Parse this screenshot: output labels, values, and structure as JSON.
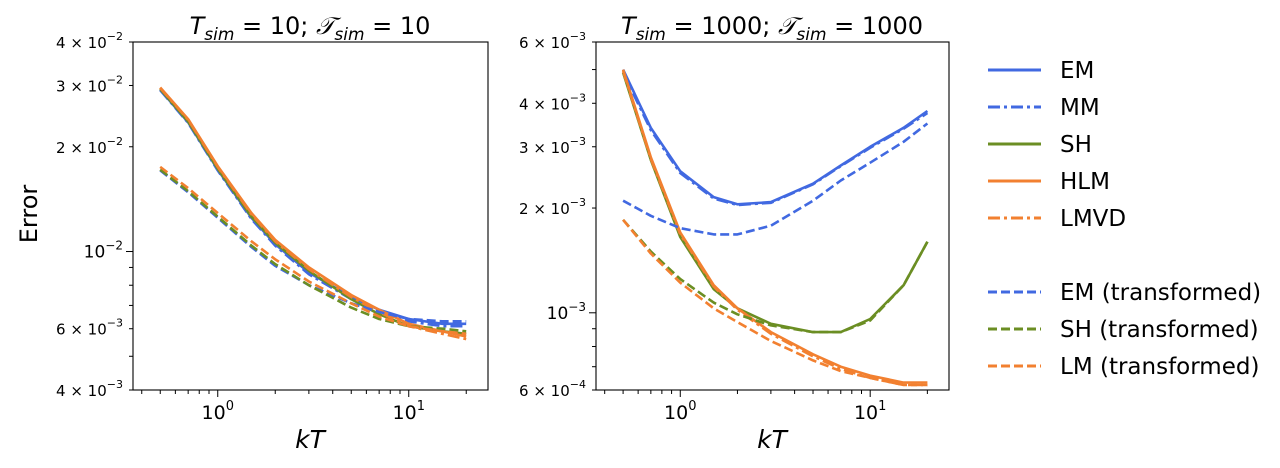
{
  "figure": {
    "ylabel": "Error",
    "legend": {
      "placement": "right",
      "entries": [
        {
          "label": "EM",
          "color": "#4169e1",
          "dash": "solid"
        },
        {
          "label": "MM",
          "color": "#4169e1",
          "dash": "dashdot"
        },
        {
          "label": "SH",
          "color": "#6b8e23",
          "dash": "solid"
        },
        {
          "label": "HLM",
          "color": "#f28030",
          "dash": "solid"
        },
        {
          "label": "LMVD",
          "color": "#f28030",
          "dash": "dashdot"
        },
        {
          "label": "EM (transformed)",
          "color": "#4169e1",
          "dash": "dashed"
        },
        {
          "label": "SH (transformed)",
          "color": "#6b8e23",
          "dash": "dashed"
        },
        {
          "label": "LM (transformed)",
          "color": "#f28030",
          "dash": "dashed"
        }
      ]
    }
  },
  "chart_data": [
    {
      "type": "line",
      "title_parts": {
        "T": "T",
        "T_sub": "sim",
        "eq1": " = 10; ",
        "cal": "𝒯",
        "cal_sub": "sim",
        "eq2": " = 10"
      },
      "xlabel": "kT",
      "xscale": "log",
      "yscale": "log",
      "xlim": [
        0.36,
        26
      ],
      "ylim": [
        0.004,
        0.04
      ],
      "xticks": [
        {
          "value": 1,
          "base": "10",
          "exp": "0"
        },
        {
          "value": 10,
          "base": "10",
          "exp": "1"
        }
      ],
      "yticks": [
        {
          "value": 0.04,
          "mant": "4 × 10",
          "exp": "−2"
        },
        {
          "value": 0.03,
          "mant": "3 × 10",
          "exp": "−2"
        },
        {
          "value": 0.02,
          "mant": "2 × 10",
          "exp": "−2"
        },
        {
          "value": 0.01,
          "mant": "10",
          "exp": "−2"
        },
        {
          "value": 0.006,
          "mant": "6 × 10",
          "exp": "−3"
        },
        {
          "value": 0.004,
          "mant": "4 × 10",
          "exp": "−3"
        }
      ],
      "series": [
        {
          "name": "EM",
          "color": "#4169e1",
          "dash": "solid",
          "x": [
            0.5,
            0.7,
            1,
            1.5,
            2,
            3,
            5,
            7,
            10,
            15,
            20
          ],
          "y": [
            0.0292,
            0.0235,
            0.0172,
            0.0125,
            0.0105,
            0.0087,
            0.0074,
            0.0068,
            0.0064,
            0.0062,
            0.0062
          ]
        },
        {
          "name": "MM",
          "color": "#4169e1",
          "dash": "dashdot",
          "x": [
            0.5,
            0.7,
            1,
            1.5,
            2,
            3,
            5,
            7,
            10,
            15,
            20
          ],
          "y": [
            0.0291,
            0.0234,
            0.0171,
            0.0124,
            0.0104,
            0.0086,
            0.0073,
            0.0067,
            0.0063,
            0.0061,
            0.0061
          ]
        },
        {
          "name": "SH",
          "color": "#6b8e23",
          "dash": "solid",
          "x": [
            0.5,
            0.7,
            1,
            1.5,
            2,
            3,
            5,
            7,
            10,
            15,
            20
          ],
          "y": [
            0.0293,
            0.0236,
            0.0173,
            0.0126,
            0.0106,
            0.0088,
            0.0073,
            0.0066,
            0.0061,
            0.0059,
            0.0058
          ]
        },
        {
          "name": "HLM",
          "color": "#f28030",
          "dash": "solid",
          "x": [
            0.5,
            0.7,
            1,
            1.5,
            2,
            3,
            5,
            7,
            10,
            15,
            20
          ],
          "y": [
            0.0296,
            0.024,
            0.0176,
            0.0129,
            0.0108,
            0.009,
            0.0075,
            0.0068,
            0.0062,
            0.0059,
            0.0057
          ]
        },
        {
          "name": "LMVD",
          "color": "#f28030",
          "dash": "dashdot",
          "x": [
            0.5,
            0.7,
            1,
            1.5,
            2,
            3,
            5,
            7,
            10,
            15,
            20
          ],
          "y": [
            0.0295,
            0.0239,
            0.0175,
            0.0128,
            0.0107,
            0.0089,
            0.0074,
            0.0067,
            0.0061,
            0.0058,
            0.0056
          ]
        },
        {
          "name": "EM (transformed)",
          "color": "#4169e1",
          "dash": "dashed",
          "x": [
            0.5,
            0.7,
            1,
            1.5,
            2,
            3,
            5,
            7,
            10,
            15,
            20
          ],
          "y": [
            0.0171,
            0.0148,
            0.0125,
            0.0103,
            0.0091,
            0.008,
            0.0071,
            0.0067,
            0.0064,
            0.0063,
            0.0063
          ]
        },
        {
          "name": "SH (transformed)",
          "color": "#6b8e23",
          "dash": "dashed",
          "x": [
            0.5,
            0.7,
            1,
            1.5,
            2,
            3,
            5,
            7,
            10,
            15,
            20
          ],
          "y": [
            0.0172,
            0.0149,
            0.0126,
            0.0104,
            0.0092,
            0.008,
            0.0069,
            0.0064,
            0.0061,
            0.006,
            0.0059
          ]
        },
        {
          "name": "LM (transformed)",
          "color": "#f28030",
          "dash": "dashed",
          "x": [
            0.5,
            0.7,
            1,
            1.5,
            2,
            3,
            5,
            7,
            10,
            15,
            20
          ],
          "y": [
            0.0175,
            0.0152,
            0.0129,
            0.0107,
            0.0095,
            0.0082,
            0.0071,
            0.0065,
            0.0061,
            0.0059,
            0.0058
          ]
        }
      ]
    },
    {
      "type": "line",
      "title_parts": {
        "T": "T",
        "T_sub": "sim",
        "eq1": " = 1000; ",
        "cal": "𝒯",
        "cal_sub": "sim",
        "eq2": " = 1000"
      },
      "xlabel": "kT",
      "xscale": "log",
      "yscale": "log",
      "xlim": [
        0.36,
        26
      ],
      "ylim": [
        0.0006,
        0.006
      ],
      "xticks": [
        {
          "value": 1,
          "base": "10",
          "exp": "0"
        },
        {
          "value": 10,
          "base": "10",
          "exp": "1"
        }
      ],
      "yticks": [
        {
          "value": 0.006,
          "mant": "6 × 10",
          "exp": "−3"
        },
        {
          "value": 0.004,
          "mant": "4 × 10",
          "exp": "−3"
        },
        {
          "value": 0.003,
          "mant": "3 × 10",
          "exp": "−3"
        },
        {
          "value": 0.002,
          "mant": "2 × 10",
          "exp": "−3"
        },
        {
          "value": 0.001,
          "mant": "10",
          "exp": "−3"
        },
        {
          "value": 0.0006,
          "mant": "6 × 10",
          "exp": "−4"
        }
      ],
      "series": [
        {
          "name": "EM",
          "color": "#4169e1",
          "dash": "solid",
          "x": [
            0.5,
            0.7,
            1,
            1.5,
            2,
            3,
            5,
            7,
            10,
            15,
            20
          ],
          "y": [
            0.005,
            0.0034,
            0.00255,
            0.00215,
            0.00205,
            0.00208,
            0.00235,
            0.00265,
            0.003,
            0.0034,
            0.0038
          ]
        },
        {
          "name": "MM",
          "color": "#4169e1",
          "dash": "dashdot",
          "x": [
            0.5,
            0.7,
            1,
            1.5,
            2,
            3,
            5,
            7,
            10,
            15,
            20
          ],
          "y": [
            0.0049,
            0.00335,
            0.00252,
            0.00213,
            0.00204,
            0.00207,
            0.00234,
            0.00264,
            0.00298,
            0.00338,
            0.00375
          ]
        },
        {
          "name": "SH",
          "color": "#6b8e23",
          "dash": "solid",
          "x": [
            0.5,
            0.7,
            1,
            1.5,
            2,
            3,
            5,
            7,
            10,
            15,
            20
          ],
          "y": [
            0.0049,
            0.00275,
            0.00165,
            0.00117,
            0.00103,
            0.00093,
            0.00088,
            0.00088,
            0.00096,
            0.0012,
            0.0016
          ]
        },
        {
          "name": "HLM",
          "color": "#f28030",
          "dash": "solid",
          "x": [
            0.5,
            0.7,
            1,
            1.5,
            2,
            3,
            5,
            7,
            10,
            15,
            20
          ],
          "y": [
            0.005,
            0.0028,
            0.0017,
            0.0012,
            0.00103,
            0.00088,
            0.00076,
            0.0007,
            0.00066,
            0.00063,
            0.00063
          ]
        },
        {
          "name": "LMVD",
          "color": "#f28030",
          "dash": "dashdot",
          "x": [
            0.5,
            0.7,
            1,
            1.5,
            2,
            3,
            5,
            7,
            10,
            15,
            20
          ],
          "y": [
            0.00495,
            0.00277,
            0.00168,
            0.00119,
            0.00102,
            0.00087,
            0.00075,
            0.00069,
            0.00065,
            0.00062,
            0.00062
          ]
        },
        {
          "name": "EM (transformed)",
          "color": "#4169e1",
          "dash": "dashed",
          "x": [
            0.5,
            0.7,
            1,
            1.5,
            2,
            3,
            5,
            7,
            10,
            15,
            20
          ],
          "y": [
            0.0021,
            0.0019,
            0.00175,
            0.00168,
            0.00168,
            0.00178,
            0.0021,
            0.0024,
            0.0027,
            0.0031,
            0.0035
          ]
        },
        {
          "name": "SH (transformed)",
          "color": "#6b8e23",
          "dash": "dashed",
          "x": [
            0.5,
            0.7,
            1,
            1.5,
            2,
            3,
            5,
            7,
            10,
            15,
            20
          ],
          "y": [
            0.00185,
            0.0015,
            0.00125,
            0.00107,
            0.00099,
            0.00092,
            0.00088,
            0.00088,
            0.00095,
            0.0012,
            0.0016
          ]
        },
        {
          "name": "LM (transformed)",
          "color": "#f28030",
          "dash": "dashed",
          "x": [
            0.5,
            0.7,
            1,
            1.5,
            2,
            3,
            5,
            7,
            10,
            15,
            20
          ],
          "y": [
            0.00185,
            0.00148,
            0.00122,
            0.00103,
            0.00094,
            0.00083,
            0.00073,
            0.00068,
            0.00065,
            0.00062,
            0.00062
          ]
        }
      ]
    }
  ]
}
